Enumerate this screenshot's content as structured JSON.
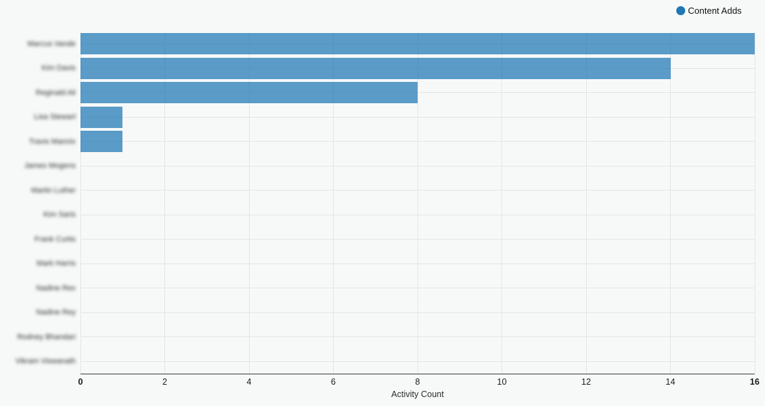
{
  "legend": {
    "label": "Content Adds",
    "dot_color": "#1f77b4"
  },
  "chart_data": {
    "type": "bar",
    "orientation": "horizontal",
    "title": "",
    "xlabel": "Activity Count",
    "ylabel": "",
    "xlim": [
      0,
      16
    ],
    "x_ticks": [
      0,
      2,
      4,
      6,
      8,
      10,
      12,
      14,
      16
    ],
    "grid": true,
    "legend_position": "top-right",
    "bar_color": "#1f77b4",
    "bar_opacity": 0.73,
    "labels_blurred": true,
    "categories": [
      "Marcus Vande",
      "Kim Davis",
      "Reginald Ali",
      "Lisa Stewart",
      "Travis Mannix",
      "James Mogens",
      "Martin Luther",
      "Kim Saris",
      "Frank Curtis",
      "Mark Harris",
      "Nadine Rex",
      "Nadine Rey",
      "Rodney Bhandari",
      "Vikram Viswanath"
    ],
    "series": [
      {
        "name": "Content Adds",
        "values": [
          16,
          14,
          8,
          1,
          1,
          0,
          0,
          0,
          0,
          0,
          0,
          0,
          0,
          0
        ]
      }
    ]
  },
  "colors": {
    "background": "#f7f9f9",
    "gridline": "#e1e5e7",
    "axis_line": "#37393b",
    "tick_text": "#191919"
  }
}
